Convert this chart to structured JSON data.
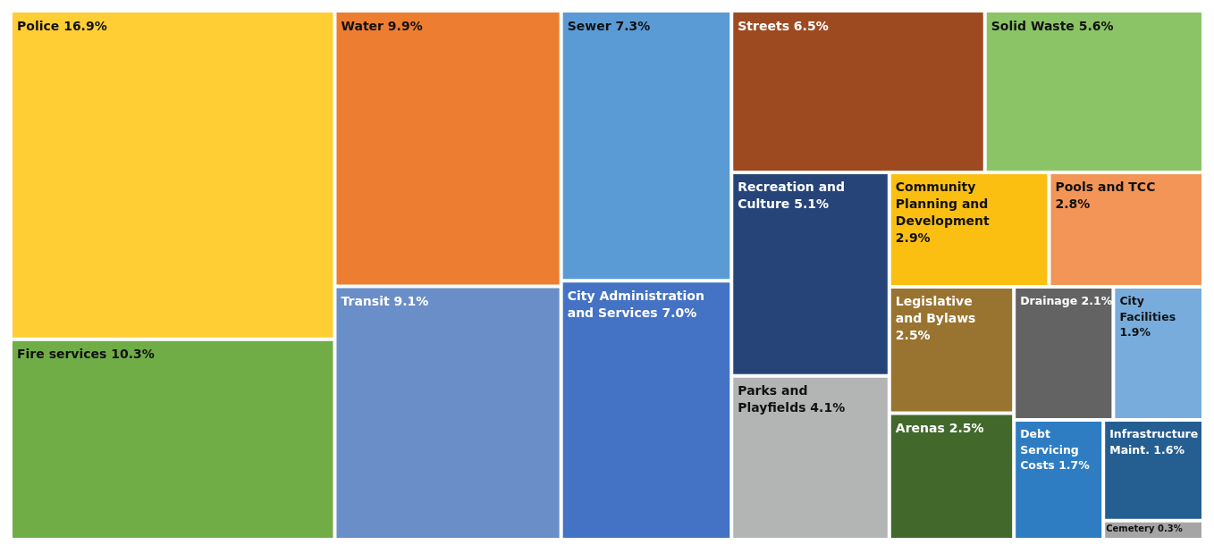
{
  "chart_data": {
    "type": "other",
    "categories": [
      "Police",
      "Fire services",
      "Water",
      "Transit",
      "Sewer",
      "City Administration and Services",
      "Streets",
      "Solid Waste",
      "Recreation and Culture",
      "Parks and Playfields",
      "Community Planning and Development",
      "Pools and TCC",
      "Arenas",
      "Legislative and Bylaws",
      "Drainage",
      "City Facilities",
      "Debt Servicing Costs",
      "Infrastructure Maint.",
      "Cemetery"
    ],
    "values": [
      16.9,
      10.3,
      9.9,
      9.1,
      7.3,
      7.0,
      6.5,
      5.6,
      5.1,
      4.1,
      2.9,
      2.8,
      2.5,
      2.5,
      2.1,
      1.9,
      1.7,
      1.6,
      0.3
    ],
    "value_labels": [
      "16.9%",
      "10.3%",
      "9.9%",
      "9.1%",
      "7.3%",
      "7.0%",
      "6.5%",
      "5.6%",
      "5.1%",
      "4.1%",
      "2.9%",
      "2.8%",
      "2.5%",
      "2.5%",
      "2.1%",
      "1.9%",
      "1.7%",
      "1.6%",
      "0.3%"
    ],
    "colors": [
      "#ffce34",
      "#70ad47",
      "#ed7d31",
      "#6a8ec8",
      "#5b9bd5",
      "#4472c4",
      "#9e4a21",
      "#8bc466",
      "#264478",
      "#b3b5b4",
      "#fbbf12",
      "#f29557",
      "#43682b",
      "#997330",
      "#636363",
      "#77acdc",
      "#2e7dc2",
      "#255e91",
      "#a5a5a5"
    ]
  }
}
